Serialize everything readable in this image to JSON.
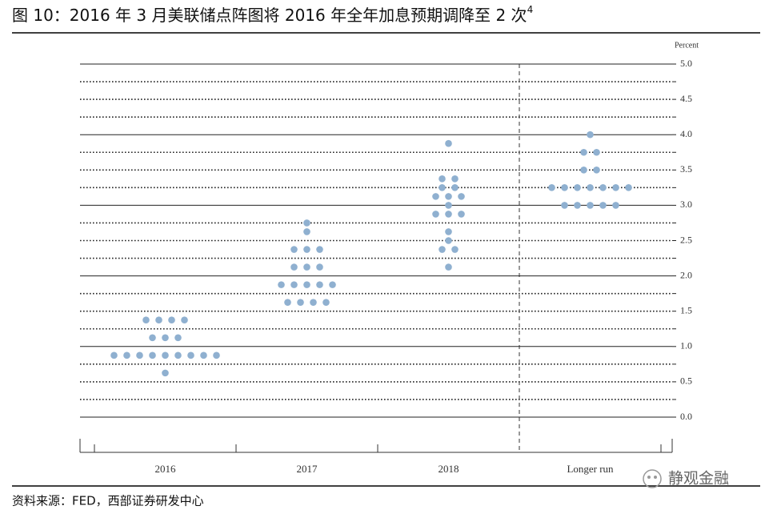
{
  "chart_data": {
    "type": "dotplot",
    "title": "图 10：2016 年 3 月美联储点阵图将 2016 年全年加息预期调降至 2 次",
    "title_note": "4",
    "y_label": "Percent",
    "categories": [
      "2016",
      "2017",
      "2018",
      "Longer run"
    ],
    "values": [
      [
        1.375,
        1.375,
        1.375,
        1.375,
        1.125,
        1.125,
        1.125,
        0.875,
        0.875,
        0.875,
        0.875,
        0.875,
        0.875,
        0.875,
        0.875,
        0.875,
        0.625
      ],
      [
        2.75,
        2.625,
        2.375,
        2.375,
        2.375,
        2.125,
        2.125,
        2.125,
        1.875,
        1.875,
        1.875,
        1.875,
        1.875,
        1.625,
        1.625,
        1.625,
        1.625
      ],
      [
        3.875,
        3.375,
        3.375,
        3.25,
        3.25,
        3.125,
        3.125,
        3.125,
        3.0,
        2.875,
        2.875,
        2.875,
        2.625,
        2.5,
        2.375,
        2.375,
        2.125
      ],
      [
        4.0,
        3.75,
        3.75,
        3.5,
        3.5,
        3.25,
        3.25,
        3.25,
        3.25,
        3.25,
        3.25,
        3.25,
        3.0,
        3.0,
        3.0,
        3.0,
        3.0
      ]
    ],
    "color": "#8fb0d0",
    "ylim": [
      0,
      5
    ],
    "yticks": [
      {
        "value": 0,
        "label": "0.0"
      },
      {
        "value": 0.5,
        "label": "0.5"
      },
      {
        "value": 1,
        "label": "1.0"
      },
      {
        "value": 1.5,
        "label": "1.5"
      },
      {
        "value": 2,
        "label": "2.0"
      },
      {
        "value": 2.5,
        "label": "2.5"
      },
      {
        "value": 3,
        "label": "3.0"
      },
      {
        "value": 3.5,
        "label": "3.5"
      },
      {
        "value": 4,
        "label": "4.0"
      },
      {
        "value": 4.5,
        "label": "4.5"
      },
      {
        "value": 5,
        "label": "5.0"
      }
    ],
    "minor_yticks": [
      0.25,
      0.75,
      1.25,
      1.75,
      2.25,
      2.75,
      3.25,
      3.75,
      4.25,
      4.75
    ],
    "grid": true,
    "source": "资料来源：FED，西部证券研发中心",
    "watermark": "静观金融"
  }
}
